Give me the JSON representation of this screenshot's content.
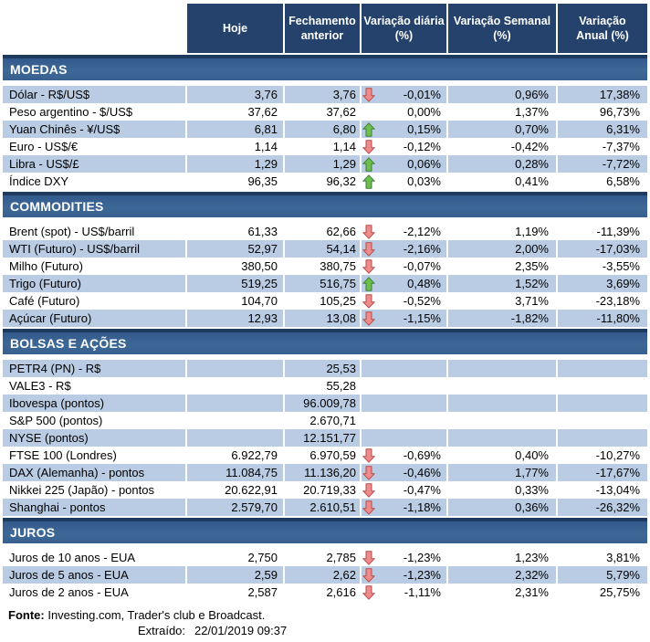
{
  "header": {
    "columns": [
      "Hoje",
      "Fechamento\nanterior",
      "Variação diária\n(%)",
      "Variação Semanal\n(%)",
      "Variação\nAnual (%)"
    ]
  },
  "colors": {
    "header_bg": "#24426B",
    "section_bar": "#3A6391",
    "section_bar_top_line": "#1E3A5F",
    "row_stripe": "#B9CCE3",
    "arrow_up_fill": "#6CBE4F",
    "arrow_up_stroke": "#3E8035",
    "arrow_down_fill": "#EC8C8C",
    "arrow_down_stroke": "#BB4A47"
  },
  "sections": [
    {
      "title": "MOEDAS",
      "first_row_striped": true,
      "rows": [
        {
          "label": "Dólar - R$/US$",
          "hoje": "3,76",
          "fechamento": "3,76",
          "arrow": "down",
          "var_diaria": "-0,01%",
          "var_semanal": "0,96%",
          "var_anual": "17,38%"
        },
        {
          "label": "Peso argentino - $/US$",
          "hoje": "37,62",
          "fechamento": "37,62",
          "arrow": null,
          "var_diaria": "0,00%",
          "var_semanal": "1,37%",
          "var_anual": "96,73%"
        },
        {
          "label": "Yuan Chinês - ¥/US$",
          "hoje": "6,81",
          "fechamento": "6,80",
          "arrow": "up",
          "var_diaria": "0,15%",
          "var_semanal": "0,70%",
          "var_anual": "6,31%"
        },
        {
          "label": "Euro - US$/€",
          "hoje": "1,14",
          "fechamento": "1,14",
          "arrow": "down",
          "var_diaria": "-0,12%",
          "var_semanal": "-0,42%",
          "var_anual": "-7,37%"
        },
        {
          "label": "Libra - US$/£",
          "hoje": "1,29",
          "fechamento": "1,29",
          "arrow": "up",
          "var_diaria": "0,06%",
          "var_semanal": "0,28%",
          "var_anual": "-7,72%"
        },
        {
          "label": "Índice DXY",
          "hoje": "96,35",
          "fechamento": "96,32",
          "arrow": "up",
          "var_diaria": "0,03%",
          "var_semanal": "0,41%",
          "var_anual": "6,58%"
        }
      ]
    },
    {
      "title": "COMMODITIES",
      "first_row_striped": false,
      "rows": [
        {
          "label": "Brent (spot) - US$/barril",
          "hoje": "61,33",
          "fechamento": "62,66",
          "arrow": "down",
          "var_diaria": "-2,12%",
          "var_semanal": "1,19%",
          "var_anual": "-11,39%"
        },
        {
          "label": "WTI (Futuro) - US$/barril",
          "hoje": "52,97",
          "fechamento": "54,14",
          "arrow": "down",
          "var_diaria": "-2,16%",
          "var_semanal": "2,00%",
          "var_anual": "-17,03%"
        },
        {
          "label": "Milho (Futuro)",
          "hoje": "380,50",
          "fechamento": "380,75",
          "arrow": "down",
          "var_diaria": "-0,07%",
          "var_semanal": "2,35%",
          "var_anual": "-3,55%"
        },
        {
          "label": "Trigo (Futuro)",
          "hoje": "519,25",
          "fechamento": "516,75",
          "arrow": "up",
          "var_diaria": "0,48%",
          "var_semanal": "1,52%",
          "var_anual": "3,69%"
        },
        {
          "label": "Café (Futuro)",
          "hoje": "104,70",
          "fechamento": "105,25",
          "arrow": "down",
          "var_diaria": "-0,52%",
          "var_semanal": "3,71%",
          "var_anual": "-23,18%"
        },
        {
          "label": "Açúcar (Futuro)",
          "hoje": "12,93",
          "fechamento": "13,08",
          "arrow": "down",
          "var_diaria": "-1,15%",
          "var_semanal": "-1,82%",
          "var_anual": "-11,80%"
        }
      ]
    },
    {
      "title": "BOLSAS E AÇÕES",
      "first_row_striped": true,
      "rows": [
        {
          "label": "PETR4 (PN) - R$",
          "hoje": "",
          "fechamento": "25,53",
          "arrow": null,
          "var_diaria": "",
          "var_semanal": "",
          "var_anual": ""
        },
        {
          "label": "VALE3 - R$",
          "hoje": "",
          "fechamento": "55,28",
          "arrow": null,
          "var_diaria": "",
          "var_semanal": "",
          "var_anual": ""
        },
        {
          "label": "Ibovespa (pontos)",
          "hoje": "",
          "fechamento": "96.009,78",
          "arrow": null,
          "var_diaria": "",
          "var_semanal": "",
          "var_anual": ""
        },
        {
          "label": "S&P 500 (pontos)",
          "hoje": "",
          "fechamento": "2.670,71",
          "arrow": null,
          "var_diaria": "",
          "var_semanal": "",
          "var_anual": ""
        },
        {
          "label": "NYSE (pontos)",
          "hoje": "",
          "fechamento": "12.151,77",
          "arrow": null,
          "var_diaria": "",
          "var_semanal": "",
          "var_anual": ""
        },
        {
          "label": "FTSE 100 (Londres)",
          "hoje": "6.922,79",
          "fechamento": "6.970,59",
          "arrow": "down",
          "var_diaria": "-0,69%",
          "var_semanal": "0,40%",
          "var_anual": "-10,27%"
        },
        {
          "label": "DAX (Alemanha) - pontos",
          "hoje": "11.084,75",
          "fechamento": "11.136,20",
          "arrow": "down",
          "var_diaria": "-0,46%",
          "var_semanal": "1,77%",
          "var_anual": "-17,67%"
        },
        {
          "label": "Nikkei 225 (Japão) - pontos",
          "hoje": "20.622,91",
          "fechamento": "20.719,33",
          "arrow": "down",
          "var_diaria": "-0,47%",
          "var_semanal": "0,33%",
          "var_anual": "-13,04%"
        },
        {
          "label": "Shanghai - pontos",
          "hoje": "2.579,70",
          "fechamento": "2.610,51",
          "arrow": "down",
          "var_diaria": "-1,18%",
          "var_semanal": "0,36%",
          "var_anual": "-26,32%"
        }
      ]
    },
    {
      "title": "JUROS",
      "first_row_striped": false,
      "rows": [
        {
          "label": "Juros de 10 anos - EUA",
          "hoje": "2,750",
          "fechamento": "2,785",
          "arrow": "down",
          "var_diaria": "-1,23%",
          "var_semanal": "1,23%",
          "var_anual": "3,81%"
        },
        {
          "label": "Juros de 5 anos - EUA",
          "hoje": "2,59",
          "fechamento": "2,62",
          "arrow": "down",
          "var_diaria": "-1,23%",
          "var_semanal": "2,32%",
          "var_anual": "5,79%"
        },
        {
          "label": "Juros de 2 anos - EUA",
          "hoje": "2,587",
          "fechamento": "2,616",
          "arrow": "down",
          "var_diaria": "-1,11%",
          "var_semanal": "2,31%",
          "var_anual": "25,75%"
        }
      ]
    }
  ],
  "footer": {
    "fonte_label": "Fonte:",
    "fonte_text": "Investing.com, Trader's club e Broadcast.",
    "extraido_label": "Extraído:",
    "extraido_value": "22/01/2019 09:37"
  }
}
